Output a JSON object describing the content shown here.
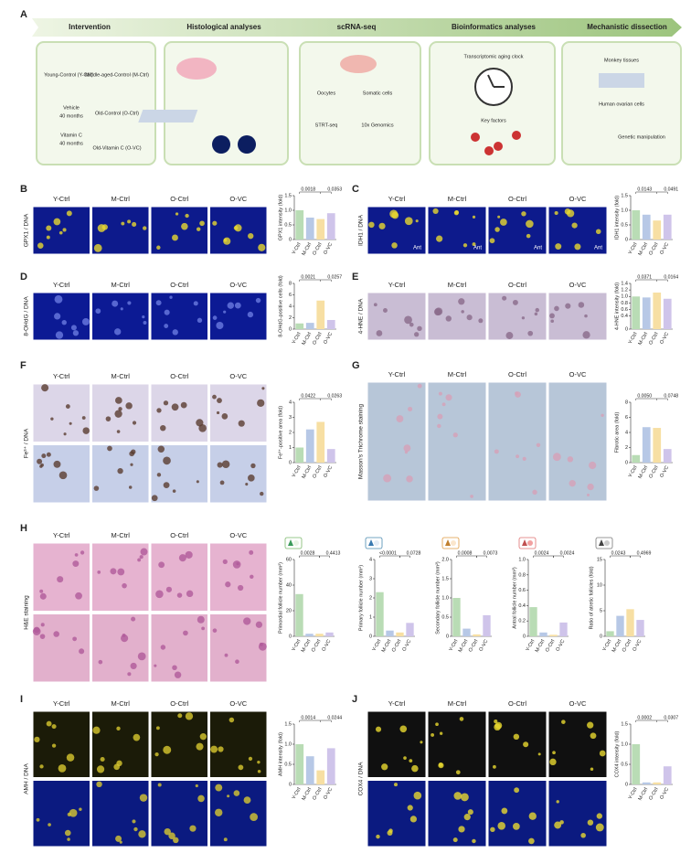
{
  "figure": {
    "panel_letters": [
      "A",
      "B",
      "C",
      "D",
      "E",
      "F",
      "G",
      "H",
      "I",
      "J"
    ],
    "workflow": {
      "steps": [
        "Intervention",
        "Histological analyses",
        "scRNA-seq",
        "Bioinformatics analyses",
        "Mechanistic dissection"
      ],
      "intervention": [
        "Young-Control (Y-Ctrl)",
        "Middle-aged-Control (M-Ctrl)",
        "Vehicle",
        "40 months",
        "Old-Control (O-Ctrl)",
        "Vitamin C",
        "40 months",
        "Old-Vitamin C (O-VC)"
      ],
      "scrna": [
        "Oocytes",
        "Somatic cells",
        "STRT-seq",
        "10x Genomics"
      ],
      "bioinformatics": [
        "Transcriptomic aging clock",
        "Key factors"
      ],
      "mechanistic": [
        "Monkey tissues",
        "Human ovarian cells",
        "Genetic manipulation"
      ]
    },
    "image_groups": [
      "Y-Ctrl",
      "M-Ctrl",
      "O-Ctrl",
      "O-VC"
    ],
    "stain_labels": [
      "GPX1 / DNA",
      "IDH1 / DNA",
      "8-OHdG / DNA",
      "4-HNE / DNA",
      "Fe³⁺ / DNA",
      "Masson's Trichrome staining",
      "H&E staining",
      "AMH / DNA",
      "COX4 / DNA"
    ],
    "ant": "Ant"
  },
  "chart_data": [
    {
      "type": "bar",
      "ylabel": "GPX1 intensity (fold)",
      "categories": [
        "Y-Ctrl",
        "M-Ctrl",
        "O-Ctrl",
        "O-VC"
      ],
      "values": [
        1.0,
        0.75,
        0.7,
        0.9
      ],
      "colors": [
        "#b9dcb5",
        "#b7c8e6",
        "#f7dfa3",
        "#cfc4ea"
      ],
      "ylim": [
        0,
        1.5
      ],
      "yticks": [
        0,
        0.5,
        {
          "value": 1,
          "label": "1.0"
        },
        1.5
      ],
      "annotations": [
        "0.0018",
        "0.0353"
      ]
    },
    {
      "type": "bar",
      "ylabel": "IDH1 intensity (fold)",
      "categories": [
        "Y-Ctrl",
        "M-Ctrl",
        "O-Ctrl",
        "O-VC"
      ],
      "values": [
        1.0,
        0.85,
        0.65,
        0.85
      ],
      "colors": [
        "#b9dcb5",
        "#b7c8e6",
        "#f7dfa3",
        "#cfc4ea"
      ],
      "ylim": [
        0,
        1.5
      ],
      "yticks": [
        0,
        0.5,
        {
          "value": 1,
          "label": "1.0"
        },
        1.5
      ],
      "annotations": [
        "0.0143",
        "0.0491"
      ]
    },
    {
      "type": "bar",
      "ylabel": "8-OHdG-positive cells (fold)",
      "categories": [
        "Y-Ctrl",
        "M-Ctrl",
        "O-Ctrl",
        "O-VC"
      ],
      "values": [
        1.0,
        1.1,
        5.0,
        1.6
      ],
      "colors": [
        "#b9dcb5",
        "#b7c8e6",
        "#f7dfa3",
        "#cfc4ea"
      ],
      "ylim": [
        0,
        8
      ],
      "yticks": [
        0,
        2,
        4,
        6,
        8
      ],
      "annotations": [
        "0.0021",
        "0.0257"
      ]
    },
    {
      "type": "bar",
      "ylabel": "4-HNE intensity (fold)",
      "categories": [
        "Y-Ctrl",
        "M-Ctrl",
        "O-Ctrl",
        "O-VC"
      ],
      "values": [
        1.0,
        0.97,
        1.12,
        0.93
      ],
      "colors": [
        "#b9dcb5",
        "#b7c8e6",
        "#f7dfa3",
        "#cfc4ea"
      ],
      "ylim": [
        0,
        1.4
      ],
      "yticks": [
        0,
        0.4,
        0.6,
        0.8,
        {
          "value": 1,
          "label": "1.0"
        },
        1.2,
        1.4
      ],
      "annotations": [
        "0.0371",
        "0.0164"
      ]
    },
    {
      "type": "bar",
      "ylabel": "Fe³⁺-positive area (fold)",
      "categories": [
        "Y-Ctrl",
        "M-Ctrl",
        "O-Ctrl",
        "O-VC"
      ],
      "values": [
        1.0,
        2.2,
        2.7,
        0.9
      ],
      "colors": [
        "#b9dcb5",
        "#b7c8e6",
        "#f7dfa3",
        "#cfc4ea"
      ],
      "ylim": [
        0,
        4
      ],
      "yticks": [
        0,
        1,
        2,
        3,
        4
      ],
      "annotations": [
        "0.0422",
        "0.0263"
      ]
    },
    {
      "type": "bar",
      "ylabel": "Fibrotic area (fold)",
      "categories": [
        "Y-Ctrl",
        "M-Ctrl",
        "O-Ctrl",
        "O-VC"
      ],
      "values": [
        1.0,
        4.7,
        4.6,
        1.8
      ],
      "colors": [
        "#b9dcb5",
        "#b7c8e6",
        "#f7dfa3",
        "#cfc4ea"
      ],
      "ylim": [
        0,
        8
      ],
      "yticks": [
        0,
        2,
        4,
        6,
        8
      ],
      "annotations": [
        "0.0050",
        "0.0748"
      ]
    },
    {
      "type": "bar",
      "ylabel": "Primordial follicle number (mm²)",
      "categories": [
        "Y-Ctrl",
        "M-Ctrl",
        "O-Ctrl",
        "O-VC"
      ],
      "values": [
        33,
        2,
        2,
        3
      ],
      "colors": [
        "#b9dcb5",
        "#b7c8e6",
        "#f7dfa3",
        "#cfc4ea"
      ],
      "ylim": [
        0,
        60
      ],
      "yticks": [
        0,
        20,
        40,
        60
      ],
      "annotations": [
        "0.0028",
        "0.4413"
      ]
    },
    {
      "type": "bar",
      "ylabel": "Primary follicle number (mm²)",
      "categories": [
        "Y-Ctrl",
        "M-Ctrl",
        "O-Ctrl",
        "O-VC"
      ],
      "values": [
        2.3,
        0.3,
        0.2,
        0.7
      ],
      "colors": [
        "#b9dcb5",
        "#b7c8e6",
        "#f7dfa3",
        "#cfc4ea"
      ],
      "ylim": [
        0,
        4
      ],
      "yticks": [
        0,
        1,
        2,
        3,
        4
      ],
      "annotations": [
        "<0.0001",
        "0.0728"
      ]
    },
    {
      "type": "bar",
      "ylabel": "Secondary follicle number (mm²)",
      "categories": [
        "Y-Ctrl",
        "M-Ctrl",
        "O-Ctrl",
        "O-VC"
      ],
      "values": [
        1.0,
        0.2,
        0.05,
        0.55
      ],
      "colors": [
        "#b9dcb5",
        "#b7c8e6",
        "#f7dfa3",
        "#cfc4ea"
      ],
      "ylim": [
        0,
        2
      ],
      "yticks": [
        0,
        0.5,
        {
          "value": 1,
          "label": "1.0"
        },
        1.5,
        {
          "value": 2,
          "label": "2.0"
        }
      ],
      "annotations": [
        "0.0008",
        "0.0073"
      ]
    },
    {
      "type": "bar",
      "ylabel": "Antral follicle number (mm²)",
      "categories": [
        "Y-Ctrl",
        "M-Ctrl",
        "O-Ctrl",
        "O-VC"
      ],
      "values": [
        0.38,
        0.05,
        0.02,
        0.18
      ],
      "colors": [
        "#b9dcb5",
        "#b7c8e6",
        "#f7dfa3",
        "#cfc4ea"
      ],
      "ylim": [
        0,
        1
      ],
      "yticks": [
        0,
        0.2,
        0.4,
        0.6,
        0.8,
        {
          "value": 1,
          "label": "1.0"
        }
      ],
      "annotations": [
        "0.0024",
        "0.0024"
      ]
    },
    {
      "type": "bar",
      "ylabel": "Ratio of atretic follicles (fold)",
      "categories": [
        "Y-Ctrl",
        "M-Ctrl",
        "O-Ctrl",
        "O-VC"
      ],
      "values": [
        1.0,
        4.0,
        5.3,
        3.2
      ],
      "colors": [
        "#b9dcb5",
        "#b7c8e6",
        "#f7dfa3",
        "#cfc4ea"
      ],
      "ylim": [
        0,
        15
      ],
      "yticks": [
        0,
        5,
        10,
        15
      ],
      "annotations": [
        "0.0243",
        "0.4969"
      ]
    },
    {
      "type": "bar",
      "ylabel": "AMH intensity (fold)",
      "categories": [
        "Y-Ctrl",
        "M-Ctrl",
        "O-Ctrl",
        "O-VC"
      ],
      "values": [
        1.0,
        0.7,
        0.35,
        0.9
      ],
      "colors": [
        "#b9dcb5",
        "#b7c8e6",
        "#f7dfa3",
        "#cfc4ea"
      ],
      "ylim": [
        0,
        1.5
      ],
      "yticks": [
        0,
        0.5,
        {
          "value": 1,
          "label": "1.0"
        },
        1.5
      ],
      "annotations": [
        "0.0014",
        "0.0244"
      ]
    },
    {
      "type": "bar",
      "ylabel": "COX4 intensity (fold)",
      "categories": [
        "Y-Ctrl",
        "M-Ctrl",
        "O-Ctrl",
        "O-VC"
      ],
      "values": [
        1.0,
        0.05,
        0.05,
        0.45
      ],
      "colors": [
        "#b9dcb5",
        "#b7c8e6",
        "#f7dfa3",
        "#cfc4ea"
      ],
      "ylim": [
        0,
        1.5
      ],
      "yticks": [
        0,
        0.5,
        {
          "value": 1,
          "label": "1.0"
        },
        1.5
      ],
      "annotations": [
        "0.0002",
        "0.0307"
      ]
    }
  ]
}
